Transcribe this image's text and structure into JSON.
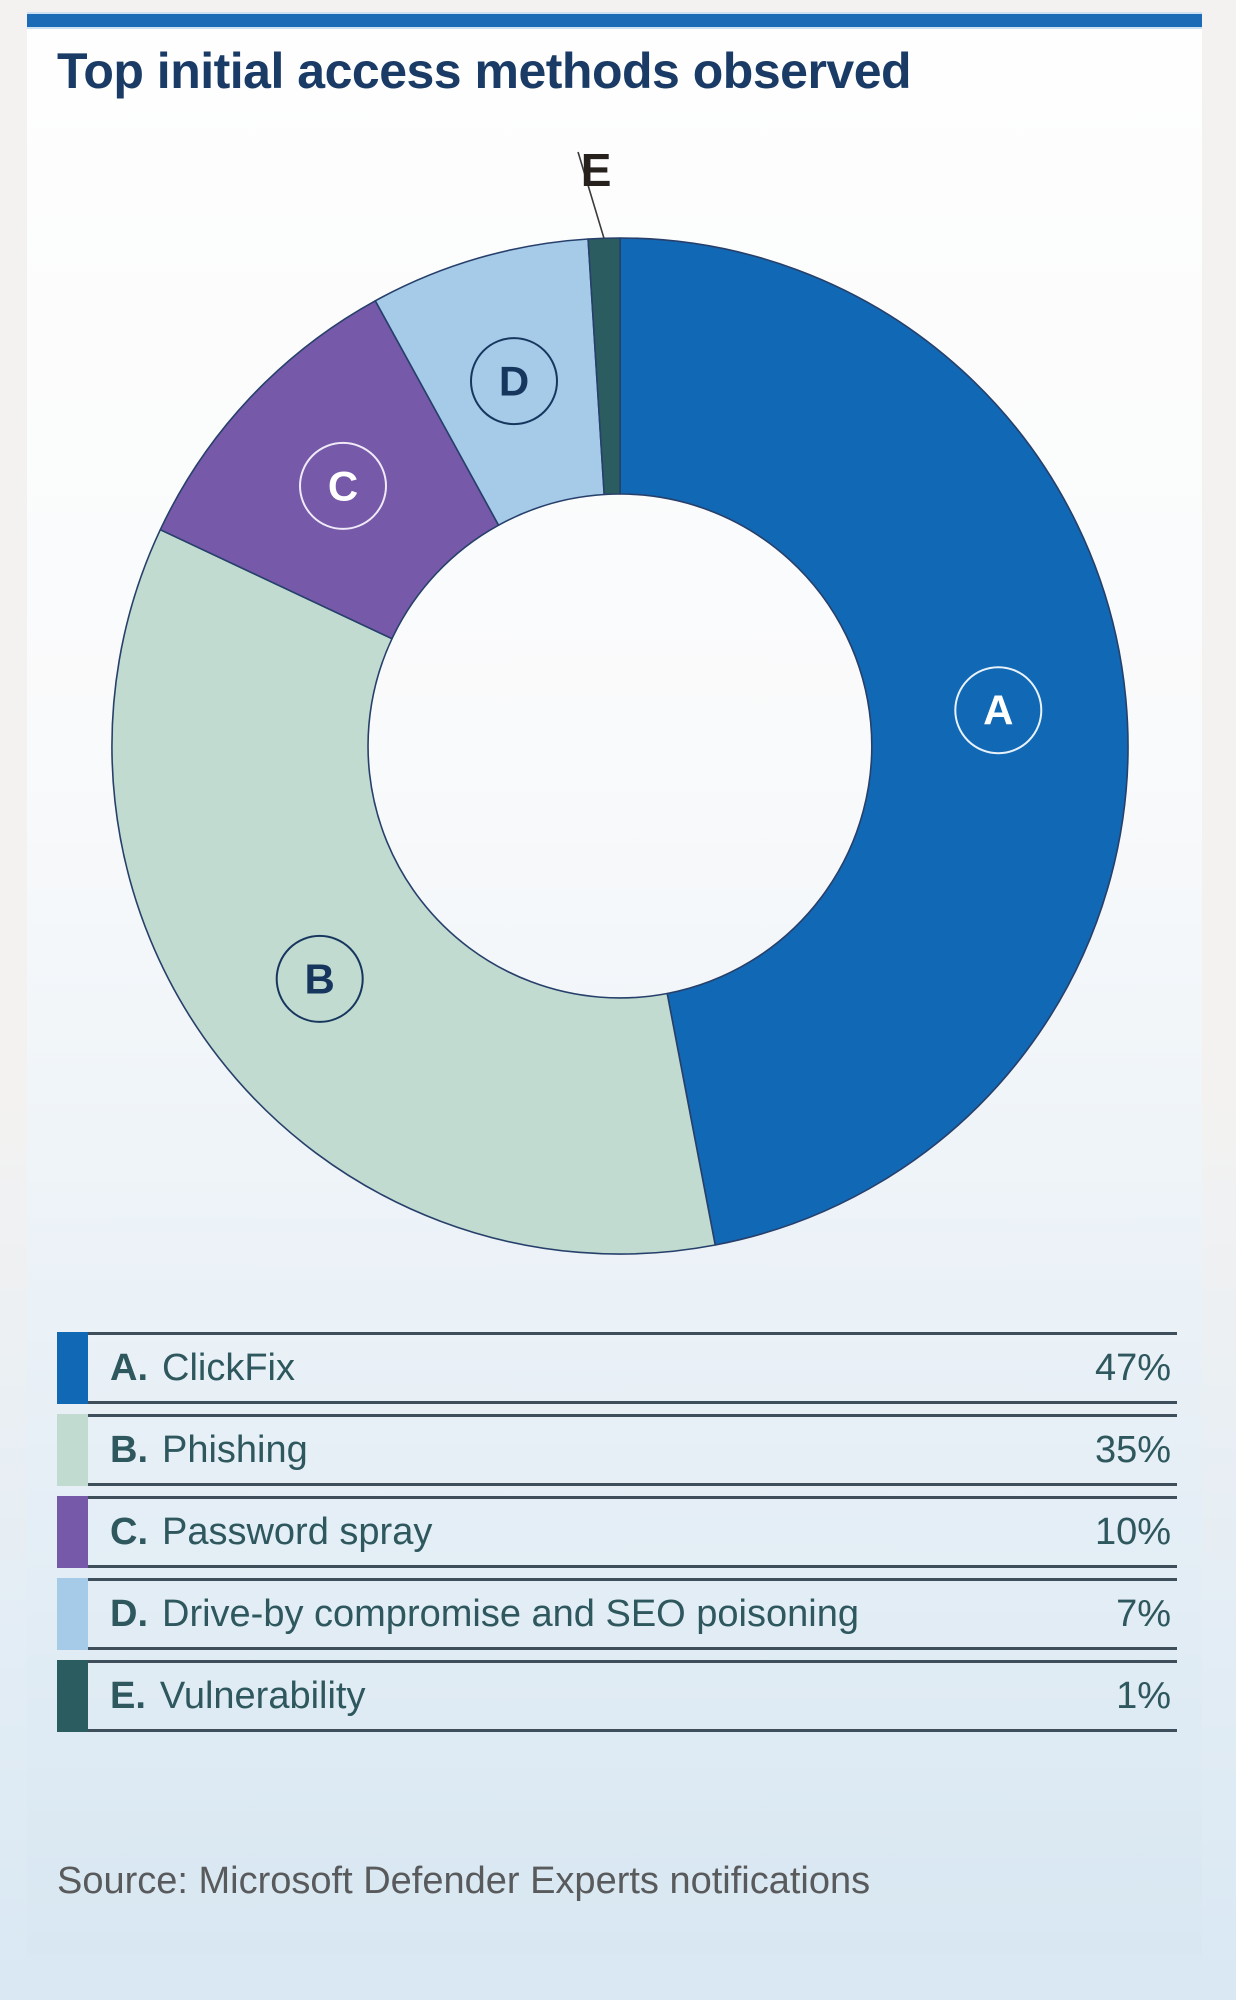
{
  "title": "Top initial access methods observed",
  "source": "Source: Microsoft Defender Experts notifications",
  "accent_color": "#1B6BB7",
  "percent_suffix": "%",
  "chart_data": {
    "type": "pie",
    "subtype": "donut",
    "title": "Top initial access methods observed",
    "start_angle_deg": 0,
    "direction": "clockwise",
    "legend_position": "bottom-table",
    "segments": [
      {
        "letter": "A",
        "label": "ClickFix",
        "value_pct": 47,
        "color": "#1168B4",
        "label_color": "#FFFFFF",
        "ring_color": "#E8F2FA",
        "label_outside": false
      },
      {
        "letter": "B",
        "label": "Phishing",
        "value_pct": 35,
        "color": "#C1DBD1",
        "label_color": "#17365D",
        "ring_color": "#17365D",
        "label_outside": false
      },
      {
        "letter": "C",
        "label": "Password spray",
        "value_pct": 10,
        "color": "#7659A9",
        "label_color": "#FFFFFF",
        "ring_color": "#F0EAF8",
        "label_outside": false
      },
      {
        "letter": "D",
        "label": "Drive-by compromise and SEO poisoning",
        "value_pct": 7,
        "color": "#A5CBE9",
        "label_color": "#17365D",
        "ring_color": "#17365D",
        "label_outside": false
      },
      {
        "letter": "E",
        "label": "Vulnerability",
        "value_pct": 1,
        "color": "#2B5C5F",
        "label_color": "#27211E",
        "ring_color": "#27211E",
        "label_outside": true
      }
    ],
    "wedge_stroke_color": "#27406B"
  }
}
